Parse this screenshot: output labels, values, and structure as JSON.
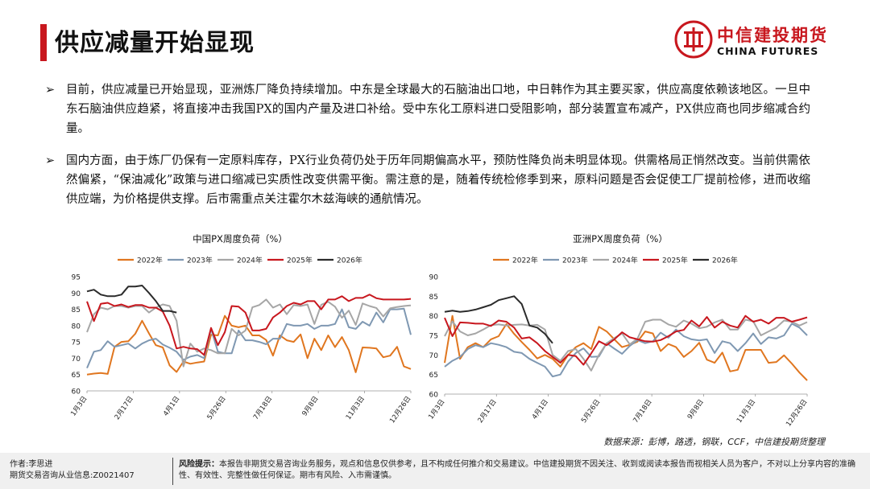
{
  "header": {
    "title": "供应减量开始显现",
    "logo_cn": "中信建投期货",
    "logo_en": "CHINA FUTURES"
  },
  "paragraphs": [
    "目前，供应减量已开始显现，亚洲炼厂降负持续增加。中东是全球最大的石脑油出口地，中日韩作为其主要买家，供应高度依赖该地区。一旦中东石脑油供应趋紧，将直接冲击我国PX的国内产量及进口补给。受中东化工原料进口受阻影响，部分装置宣布减产，PX供应商也同步缩减合约量。",
    "国内方面，由于炼厂仍保有一定原料库存，PX行业负荷仍处于历年同期偏高水平，预防性降负尚未明显体现。供需格局正悄然改变。当前供需依然偏紧，“保油减化”政策与进口缩减已实质性改变供需平衡。需注意的是，随着传统检修季到来，原料问题是否会促使工厂提前检修，进而收缩供应端，为价格提供支撑。后市需重点关注霍尔木兹海峡的通航情况。"
  ],
  "source": "数据来源：彭博，路透，钢联，CCF，中信建投期货整理",
  "footer": {
    "author": "作者:李思进",
    "license": "期货交易咨询从业信息:Z0021407",
    "risk_label": "风险提示：",
    "risk_text": "本报告非期货交易咨询业务服务，观点和信息仅供参考，且不构成任何推介和交易建议。中信建投期货不因关注、收到或阅读本报告而视相关人员为客户，不对以上分享内容的准确性、有效性、完整性做任何保证。期市有风险、入市需谨慎。"
  },
  "colors": {
    "accent": "#c8171e",
    "s2022": "#e0761f",
    "s2023": "#7f98b2",
    "s2024": "#a6a6a6",
    "s2025": "#c8171e",
    "s2026": "#2b2b2b"
  },
  "chart_data": [
    {
      "type": "line",
      "title": "中国PX周度负荷（%）",
      "ylim": [
        60,
        95
      ],
      "yticks": [
        60,
        65,
        70,
        75,
        80,
        85,
        90,
        95
      ],
      "xticks": [
        "1月3日",
        "2月17日",
        "4月1日",
        "5月26日",
        "7月18日",
        "9月8日",
        "11月3日",
        "12月26日"
      ],
      "legend": "top",
      "series": [
        {
          "name": "2022年",
          "values": [
            65,
            65.3,
            65.5,
            65.2,
            73.5,
            75,
            75.2,
            77.5,
            81.5,
            77.6,
            74,
            73.3,
            67.8,
            65.8,
            69,
            68.3,
            68.7,
            69,
            77.2,
            77,
            83,
            80,
            79.5,
            80,
            77,
            77,
            75.6,
            70.8,
            77,
            75.5,
            75,
            77.3,
            70,
            76,
            72.5,
            77,
            73.4,
            76.5,
            72.5,
            65.7,
            73.3,
            73.2,
            73,
            70.3,
            70.8,
            73.5,
            67.5,
            66.7
          ]
        },
        {
          "name": "2023年",
          "values": [
            67,
            72,
            72.5,
            75.2,
            73.5,
            74,
            74.5,
            73,
            74.5,
            75.5,
            76,
            74.2,
            73.2,
            72,
            69.5,
            70.5,
            71,
            70,
            79,
            72,
            71.5,
            71.5,
            78.5,
            75.5,
            75.5,
            75,
            74.3,
            76,
            76,
            80.5,
            80,
            80,
            80.5,
            79,
            80,
            80,
            80.5,
            85,
            79.5,
            79,
            81.2,
            80,
            84,
            81,
            85,
            85,
            85.2,
            77.2
          ]
        },
        {
          "name": "2024年",
          "values": [
            78,
            83.5,
            85.5,
            85,
            86,
            86,
            85.5,
            86,
            86,
            84,
            85.5,
            86.5,
            86,
            81.5,
            67.5,
            74.5,
            72,
            73,
            72.5,
            71.5,
            71.5,
            79,
            77,
            78.5,
            85.6,
            86.3,
            88,
            85.5,
            86.5,
            83.5,
            86.3,
            86,
            86.5,
            80.5,
            86.4,
            87.3,
            85.8,
            82.4,
            84.6,
            80.2,
            86.8,
            86,
            85.4,
            82.8,
            85.3,
            85.7,
            86,
            86.2
          ]
        },
        {
          "name": "2025年",
          "values": [
            87.4,
            81.4,
            86.7,
            87,
            86,
            86.5,
            85.7,
            86.3,
            86.3,
            85.5,
            85.5,
            84.3,
            80,
            73,
            73.5,
            73,
            72.8,
            71,
            79.3,
            74,
            78,
            86,
            85.8,
            84,
            78.5,
            78.5,
            79,
            82.5,
            84,
            86,
            87,
            86.5,
            87.5,
            87.5,
            85,
            88,
            88,
            89,
            87.5,
            88.5,
            88.5,
            89.5,
            88.4,
            88,
            88,
            88,
            88,
            88.2
          ]
        },
        {
          "name": "2026年",
          "values": [
            90.5,
            91,
            89.5,
            89,
            89,
            89.5,
            92,
            92,
            92.3,
            90,
            87.5,
            84.5,
            84.5,
            84
          ]
        }
      ]
    },
    {
      "type": "line",
      "title": "亚洲PX周度负荷（%）",
      "ylim": [
        60,
        90
      ],
      "yticks": [
        60,
        65,
        70,
        75,
        80,
        85,
        90
      ],
      "xticks": [
        "1月3日",
        "2月17日",
        "4月1日",
        "5月26日",
        "7月18日",
        "9月8日",
        "11月3日",
        "12月26日"
      ],
      "legend": "top",
      "series": [
        {
          "name": "2022年",
          "values": [
            68,
            80,
            69,
            72,
            73,
            72,
            74,
            74.8,
            77.9,
            75.4,
            73.3,
            71.3,
            69.1,
            70,
            69,
            67,
            70,
            72,
            73,
            71.5,
            77.2,
            76,
            74,
            72,
            72.6,
            73.4,
            76,
            75.5,
            71,
            72.8,
            72,
            69.5,
            71,
            73.1,
            68.8,
            68,
            70.6,
            65.8,
            66.2,
            71.3,
            71.3,
            71.3,
            68,
            68.2,
            69.9,
            67.8,
            65.5,
            63.5
          ]
        },
        {
          "name": "2023年",
          "values": [
            67,
            68.5,
            69.5,
            71.5,
            72.5,
            72,
            73,
            72.6,
            72,
            70.8,
            70.5,
            69,
            68,
            67,
            64.5,
            65,
            68.3,
            70.5,
            71.7,
            69.5,
            69.6,
            73,
            71.6,
            70.3,
            72.3,
            73.8,
            73,
            73.5,
            75.7,
            74.4,
            76.5,
            74.8,
            74,
            73.7,
            74,
            70.5,
            73.5,
            73,
            71,
            73,
            75.5,
            72.8,
            74.5,
            74.2,
            75,
            78,
            77,
            75
          ]
        },
        {
          "name": "2024年",
          "values": [
            74.8,
            78.6,
            76,
            75,
            75.5,
            76.5,
            77.6,
            77.8,
            77.5,
            77.7,
            77.8,
            77.5,
            77.7,
            76.5,
            70,
            68.5,
            71,
            71.5,
            69,
            66,
            70,
            73,
            74.3,
            75.5,
            72.7,
            74.2,
            78.5,
            79,
            79,
            77.8,
            77.2,
            78.8,
            78,
            76.8,
            77.2,
            78.3,
            79,
            76.5,
            76.5,
            79,
            78.6,
            75,
            76,
            77,
            78.8,
            78.5,
            77.5,
            78.4
          ]
        },
        {
          "name": "2025年",
          "values": [
            79.5,
            74.8,
            78.3,
            78.2,
            78,
            78,
            77.4,
            78.8,
            78.5,
            77,
            74.2,
            74.5,
            73,
            71,
            69.5,
            68,
            70,
            69.7,
            67.5,
            70.4,
            73.5,
            72.5,
            74,
            75.8,
            74.5,
            74,
            73.5,
            73.4,
            73.8,
            74.8,
            76,
            76.4,
            78.8,
            77.3,
            79.7,
            77,
            78.5,
            77.5,
            77,
            80,
            78.5,
            79,
            78,
            79.5,
            79.5,
            78.5,
            79,
            79.6
          ]
        },
        {
          "name": "2026年",
          "values": [
            81,
            81.3,
            81,
            81.2,
            81.6,
            82.2,
            82.8,
            84,
            84.5,
            85,
            83,
            77.5,
            77,
            75.4,
            73
          ]
        }
      ]
    }
  ]
}
